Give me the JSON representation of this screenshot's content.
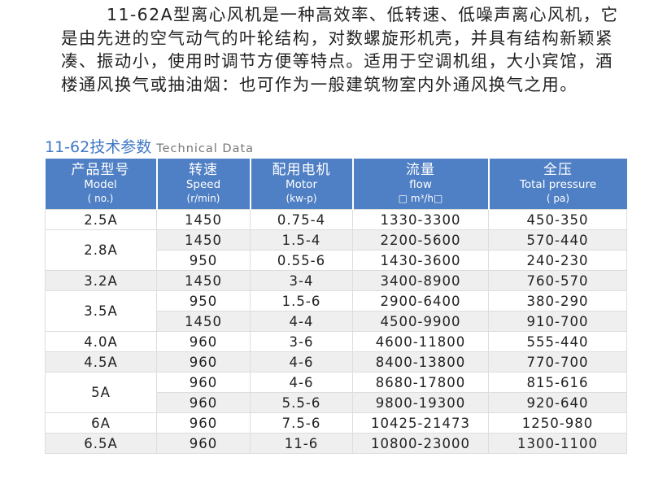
{
  "intro": {
    "lines": [
      "11-62A型离心风机是一种高效率、低转速、低噪声离心风机，它是由先进的空气动气的叶轮结构，对数螺旋形机壳，并具有结构新颖紧凑、振动小，使用时调节方便等特点。适用于空调机组，大小宾馆，酒楼通风换气或抽油烟：也可作为一般建筑物室内外通风换气之用。"
    ]
  },
  "section": {
    "title_cn": "11-62技术参数",
    "title_en": "Technical Data"
  },
  "colors": {
    "header_bg": "#4f7fc4",
    "title": "#3f78c4",
    "stripe": "#efefef"
  },
  "table": {
    "headers": [
      {
        "cn": "产品型号",
        "en": "Model",
        "unit": "( no.)"
      },
      {
        "cn": "转速",
        "en": "Speed",
        "unit": "(r/min)"
      },
      {
        "cn": "配用电机",
        "en": "Motor",
        "unit": "(kw-p)"
      },
      {
        "cn": "流量",
        "en": "flow",
        "unit": "□ m³/h□"
      },
      {
        "cn": "全压",
        "en": "Total pressure",
        "unit": "( pa)"
      }
    ],
    "models": [
      {
        "model": "2.5A",
        "rows": [
          [
            "1450",
            "0.75-4",
            "1330-3300",
            "450-350"
          ]
        ]
      },
      {
        "model": "2.8A",
        "rows": [
          [
            "1450",
            "1.5-4",
            "2200-5600",
            "570-440"
          ],
          [
            "950",
            "0.55-6",
            "1430-3600",
            "240-230"
          ]
        ]
      },
      {
        "model": "3.2A",
        "rows": [
          [
            "1450",
            "3-4",
            "3400-8900",
            "760-570"
          ]
        ]
      },
      {
        "model": "3.5A",
        "rows": [
          [
            "950",
            "1.5-6",
            "2900-6400",
            "380-290"
          ],
          [
            "1450",
            "4-4",
            "4500-9900",
            "910-700"
          ]
        ]
      },
      {
        "model": "4.0A",
        "rows": [
          [
            "960",
            "3-6",
            "4600-11800",
            "555-440"
          ]
        ]
      },
      {
        "model": "4.5A",
        "rows": [
          [
            "960",
            "4-6",
            "8400-13800",
            "770-700"
          ]
        ]
      },
      {
        "model": "5A",
        "rows": [
          [
            "960",
            "4-6",
            "8680-17800",
            "815-616"
          ],
          [
            "960",
            "5.5-6",
            "9800-19300",
            "920-640"
          ]
        ]
      },
      {
        "model": "6A",
        "rows": [
          [
            "960",
            "7.5-6",
            "10425-21473",
            "1250-980"
          ]
        ]
      },
      {
        "model": "6.5A",
        "rows": [
          [
            "960",
            "11-6",
            "10800-23000",
            "1300-1100"
          ]
        ]
      }
    ]
  }
}
